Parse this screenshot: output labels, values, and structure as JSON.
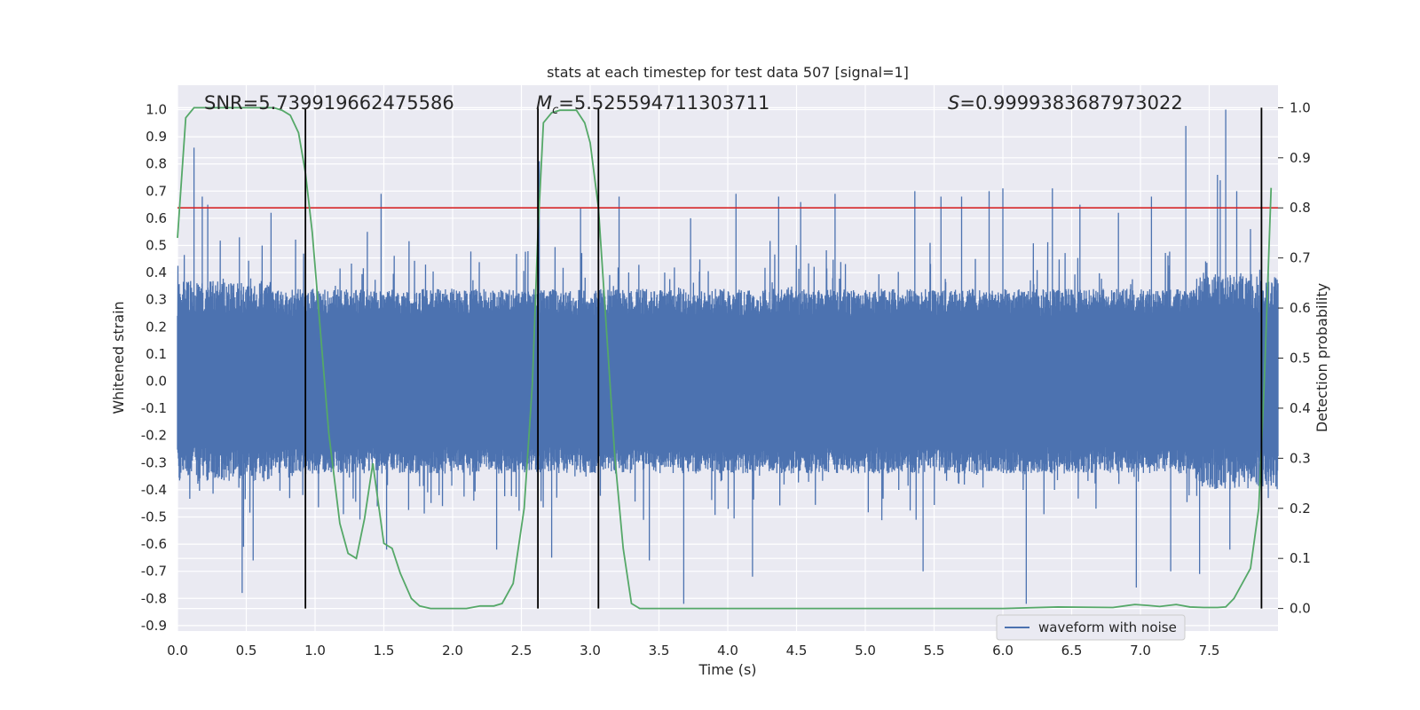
{
  "chart_data": {
    "type": "line",
    "title": "stats at each timestep for test data 507 [signal=1]",
    "xlabel": "Time (s)",
    "ylabel": "Whitened strain",
    "y2label": "Detection probability",
    "xlim": [
      0.0,
      8.0
    ],
    "ylim": [
      -0.92,
      1.09
    ],
    "y2lim": [
      -0.045,
      1.045
    ],
    "xticks": [
      "0.0",
      "0.5",
      "1.0",
      "1.5",
      "2.0",
      "2.5",
      "3.0",
      "3.5",
      "4.0",
      "4.5",
      "5.0",
      "5.5",
      "6.0",
      "6.5",
      "7.0",
      "7.5"
    ],
    "yticks": [
      "-0.9",
      "-0.8",
      "-0.7",
      "-0.6",
      "-0.5",
      "-0.4",
      "-0.3",
      "-0.2",
      "-0.1",
      "0.0",
      "0.1",
      "0.2",
      "0.3",
      "0.4",
      "0.5",
      "0.6",
      "0.7",
      "0.8",
      "0.9",
      "1.0"
    ],
    "y2ticks": [
      "0.0",
      "0.1",
      "0.2",
      "0.3",
      "0.4",
      "0.5",
      "0.6",
      "0.7",
      "0.8",
      "0.9",
      "1.0"
    ],
    "grid": true,
    "legend": {
      "entries": [
        "waveform with noise"
      ],
      "placement": "lower-right"
    },
    "annotations": {
      "snr": "SNR=5.739919662475586",
      "mc_symbol": "M",
      "mc_sub": "c",
      "mc_value": "=5.525594711303711",
      "s_symbol": "S",
      "s_value": "=0.9999383687973022"
    },
    "threshold": {
      "axis": "right",
      "value": 0.8,
      "color": "#d62728"
    },
    "vertical_lines_time": [
      0.93,
      2.62,
      3.06,
      7.88
    ],
    "colors": {
      "waveform": "#4c72b0",
      "probability": "#55a868",
      "threshold": "#d62728",
      "markers": "#000000",
      "background": "#eaeaf2"
    },
    "waveform": {
      "name": "waveform with noise",
      "description_range": [
        -0.82,
        1.0
      ],
      "spikes": [
        [
          0.12,
          0.86
        ],
        [
          0.18,
          0.68
        ],
        [
          0.22,
          0.65
        ],
        [
          0.45,
          0.53
        ],
        [
          0.48,
          -0.61
        ],
        [
          0.47,
          -0.78
        ],
        [
          0.55,
          -0.66
        ],
        [
          0.68,
          0.62
        ],
        [
          1.38,
          0.55
        ],
        [
          1.48,
          0.69
        ],
        [
          1.52,
          -0.62
        ],
        [
          2.32,
          -0.62
        ],
        [
          2.63,
          0.81
        ],
        [
          2.72,
          -0.65
        ],
        [
          2.93,
          0.64
        ],
        [
          3.21,
          0.68
        ],
        [
          3.43,
          -0.66
        ],
        [
          3.68,
          -0.82
        ],
        [
          3.73,
          0.6
        ],
        [
          4.06,
          0.69
        ],
        [
          4.18,
          -0.72
        ],
        [
          4.37,
          0.68
        ],
        [
          4.53,
          0.66
        ],
        [
          4.78,
          0.69
        ],
        [
          5.36,
          0.7
        ],
        [
          5.42,
          -0.7
        ],
        [
          5.55,
          0.68
        ],
        [
          5.7,
          0.68
        ],
        [
          5.9,
          0.7
        ],
        [
          6.0,
          0.71
        ],
        [
          6.17,
          -0.82
        ],
        [
          6.36,
          0.71
        ],
        [
          6.56,
          0.65
        ],
        [
          6.84,
          0.62
        ],
        [
          6.97,
          -0.76
        ],
        [
          7.08,
          0.68
        ],
        [
          7.22,
          -0.7
        ],
        [
          7.33,
          0.94
        ],
        [
          7.43,
          -0.71
        ],
        [
          7.56,
          0.76
        ],
        [
          7.58,
          0.74
        ],
        [
          7.62,
          1.0
        ],
        [
          7.65,
          -0.62
        ],
        [
          7.7,
          0.7
        ],
        [
          7.8,
          0.56
        ]
      ]
    },
    "series": [
      {
        "name": "",
        "axis": "right",
        "x": [
          0.0,
          0.06,
          0.12,
          0.2,
          0.3,
          0.4,
          0.5,
          0.6,
          0.7,
          0.76,
          0.82,
          0.88,
          0.93,
          0.98,
          1.04,
          1.1,
          1.18,
          1.24,
          1.3,
          1.36,
          1.42,
          1.5,
          1.56,
          1.62,
          1.7,
          1.76,
          1.84,
          1.9,
          2.0,
          2.1,
          2.2,
          2.3,
          2.36,
          2.44,
          2.52,
          2.58,
          2.62,
          2.66,
          2.72,
          2.78,
          2.84,
          2.9,
          2.96,
          3.0,
          3.06,
          3.12,
          3.18,
          3.24,
          3.3,
          3.36,
          3.42,
          3.5,
          3.7,
          4.0,
          4.5,
          5.0,
          5.5,
          6.0,
          6.4,
          6.8,
          6.96,
          7.06,
          7.14,
          7.26,
          7.36,
          7.46,
          7.56,
          7.62,
          7.68,
          7.74,
          7.8,
          7.86,
          7.9,
          7.95
        ],
        "y": [
          0.74,
          0.98,
          1.0,
          1.0,
          1.0,
          1.0,
          1.0,
          1.0,
          1.0,
          0.995,
          0.985,
          0.95,
          0.87,
          0.75,
          0.55,
          0.35,
          0.17,
          0.11,
          0.1,
          0.18,
          0.29,
          0.13,
          0.12,
          0.07,
          0.02,
          0.005,
          0.0,
          0.0,
          0.0,
          0.0,
          0.005,
          0.005,
          0.01,
          0.05,
          0.2,
          0.45,
          0.75,
          0.97,
          0.99,
          0.995,
          0.995,
          0.995,
          0.97,
          0.93,
          0.8,
          0.55,
          0.3,
          0.12,
          0.01,
          0.0,
          0.0,
          0.0,
          0.0,
          0.0,
          0.0,
          0.0,
          0.0,
          0.0,
          0.003,
          0.002,
          0.008,
          0.006,
          0.004,
          0.008,
          0.003,
          0.002,
          0.002,
          0.003,
          0.02,
          0.05,
          0.08,
          0.2,
          0.45,
          0.84
        ]
      }
    ]
  }
}
